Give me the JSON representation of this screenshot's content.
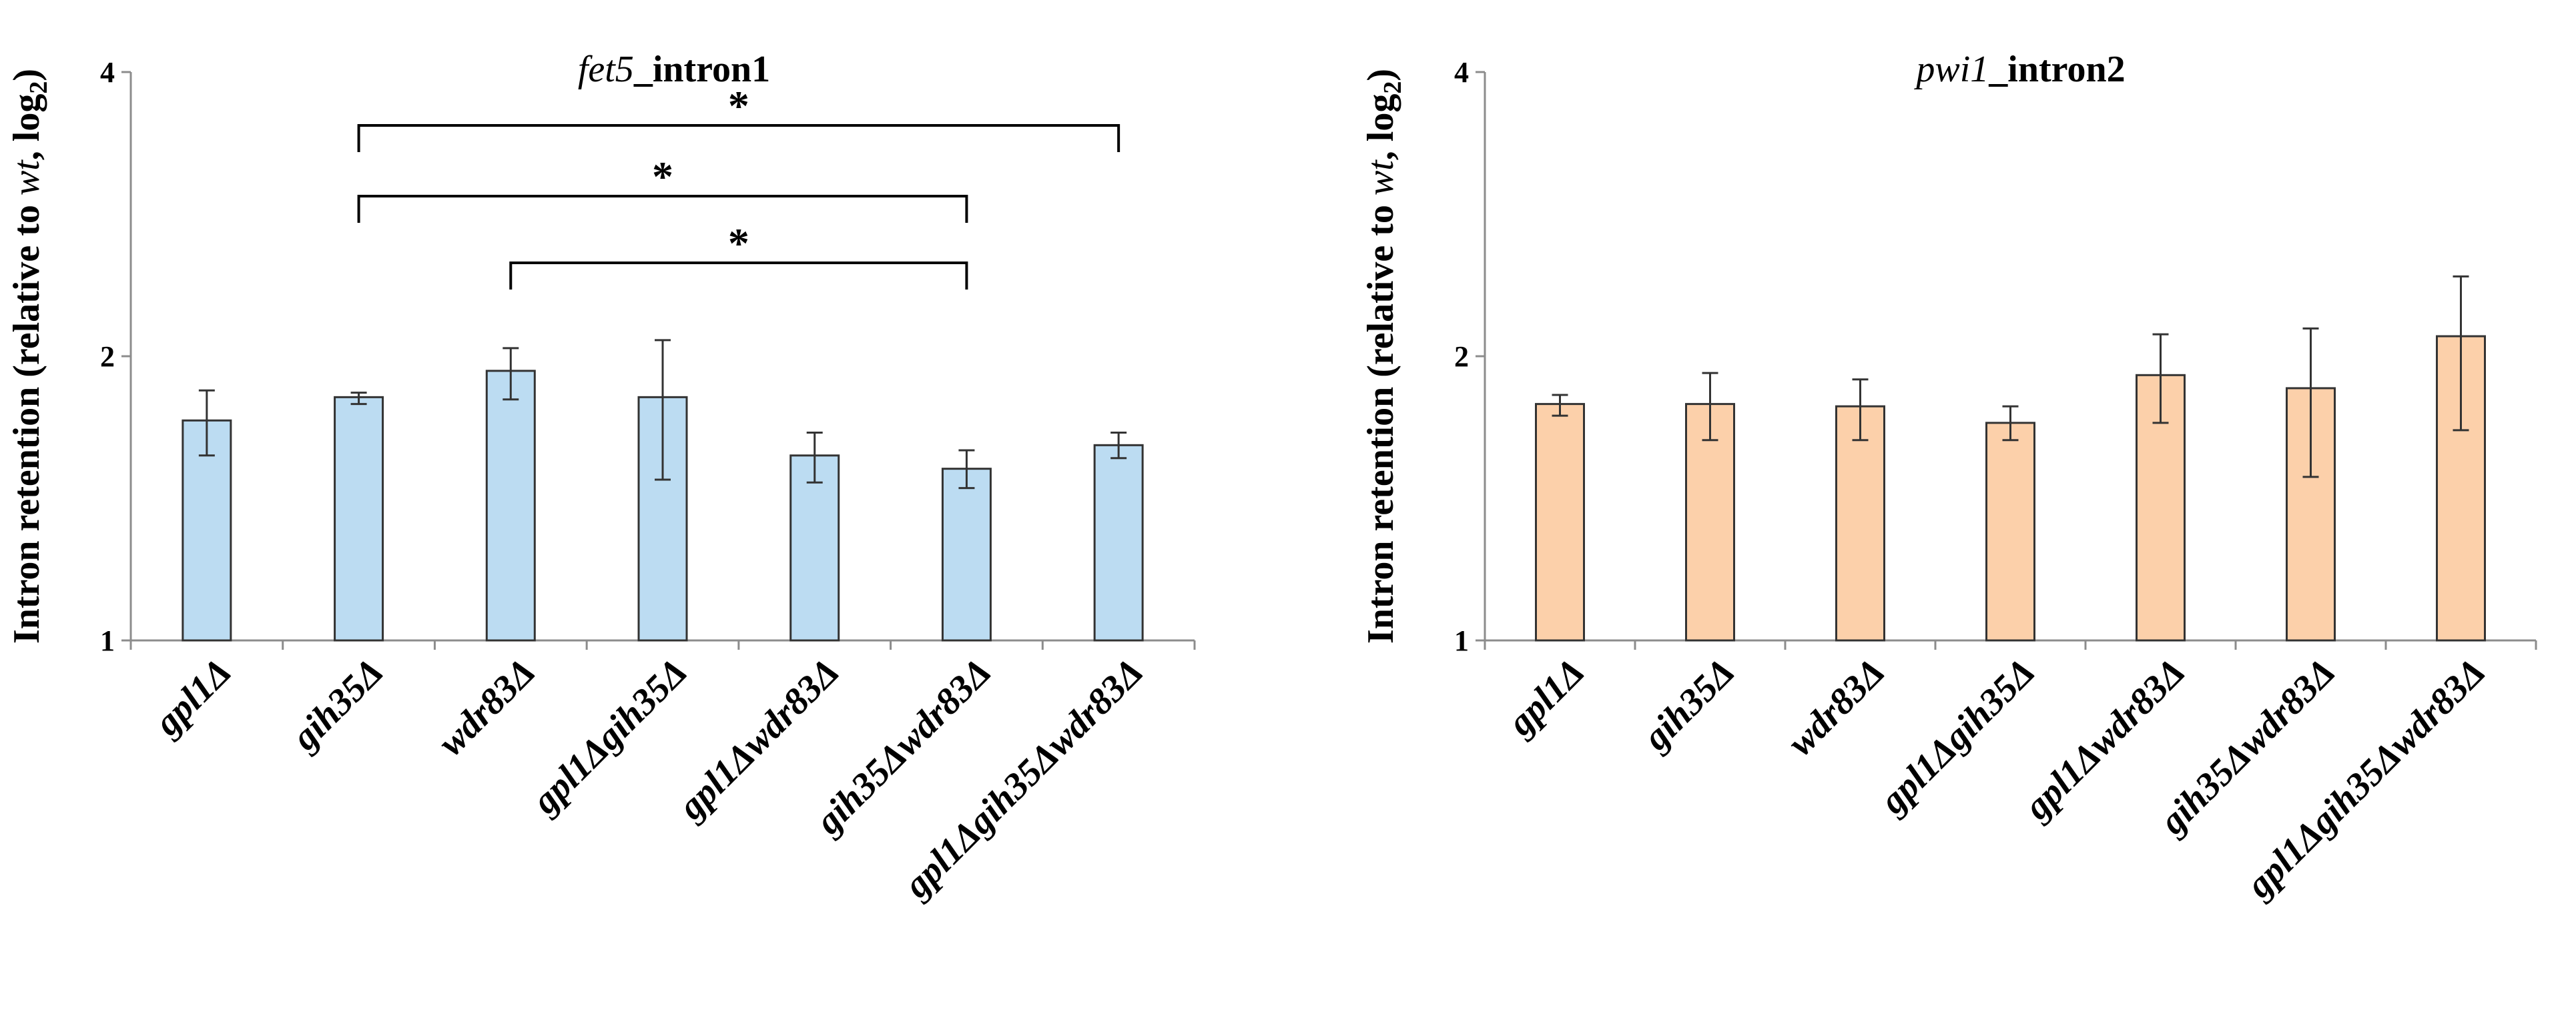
{
  "chart_data": [
    {
      "type": "bar",
      "title_gene": "fet5",
      "title_rest": "_intron1",
      "ylabel_parts": [
        "Intron retention (relative to ",
        "wt",
        ", log",
        "2",
        ")"
      ],
      "yscale": "log2",
      "ylim": [
        1,
        4
      ],
      "yticks": [
        "1",
        "2",
        "4"
      ],
      "ytick_values": [
        1,
        2,
        4
      ],
      "bar_color": "#bcdcf2",
      "categories": [
        "gpl1Δ",
        "gih35Δ",
        "wdr83Δ",
        "gpl1Δgih35Δ",
        "gpl1Δwdr83Δ",
        "gih35Δwdr83Δ",
        "gpl1Δgih35Δwdr83Δ"
      ],
      "values": [
        1.71,
        1.81,
        1.93,
        1.81,
        1.57,
        1.52,
        1.61
      ],
      "error_low": [
        1.57,
        1.78,
        1.8,
        1.48,
        1.47,
        1.45,
        1.56
      ],
      "error_high": [
        1.84,
        1.83,
        2.04,
        2.08,
        1.66,
        1.59,
        1.66
      ],
      "significance": [
        {
          "from": 1,
          "to": 6,
          "label": "*"
        },
        {
          "from": 1,
          "to": 5,
          "label": "*"
        },
        {
          "from": 2,
          "to": 5,
          "label": "*"
        }
      ]
    },
    {
      "type": "bar",
      "title_gene": "pwi1",
      "title_rest": "_intron2",
      "ylabel_parts": [
        "Intron retention (relative to ",
        "wt",
        ", log",
        "2",
        ")"
      ],
      "yscale": "log2",
      "ylim": [
        1,
        4
      ],
      "yticks": [
        "1",
        "2",
        "4"
      ],
      "ytick_values": [
        1,
        2,
        4
      ],
      "bar_color": "#fcd0aa",
      "categories": [
        "gpl1Δ",
        "gih35Δ",
        "wdr83Δ",
        "gpl1Δgih35Δ",
        "gpl1Δwdr83Δ",
        "gih35Δwdr83Δ",
        "gpl1Δgih35Δwdr83Δ"
      ],
      "values": [
        1.78,
        1.78,
        1.77,
        1.7,
        1.91,
        1.85,
        2.1
      ],
      "error_low": [
        1.73,
        1.63,
        1.63,
        1.63,
        1.7,
        1.49,
        1.67
      ],
      "error_high": [
        1.82,
        1.92,
        1.89,
        1.77,
        2.11,
        2.14,
        2.43
      ],
      "significance": []
    }
  ]
}
